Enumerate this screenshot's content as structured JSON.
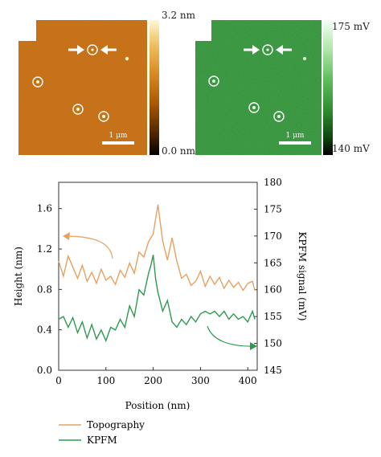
{
  "images": {
    "topography": {
      "colorbar_max": "3.2 nm",
      "colorbar_min": "0.0 nm",
      "scalebar_label": "1 μm",
      "colors": {
        "background": "#c66b12",
        "mask": "#ffffff"
      },
      "features": [
        {
          "kind": "circle-marker"
        },
        {
          "kind": "circle-marker"
        },
        {
          "kind": "circle-marker"
        },
        {
          "kind": "circle-marker"
        }
      ]
    },
    "kpfm": {
      "colorbar_max": "175 mV",
      "colorbar_min": "140 mV",
      "scalebar_label": "1 μm",
      "colors": {
        "background": "#2f8f37",
        "mask": "#ffffff"
      },
      "features": [
        {
          "kind": "circle-marker"
        },
        {
          "kind": "circle-marker"
        },
        {
          "kind": "circle-marker"
        },
        {
          "kind": "circle-marker"
        }
      ]
    }
  },
  "chart_data": {
    "type": "line",
    "xlabel": "Position (nm)",
    "ylabel_left": "Height (nm)",
    "ylabel_right": "KPFM signal (mV)",
    "xlim": [
      0,
      420
    ],
    "ylim_left": [
      0,
      1.86
    ],
    "ylim_right": [
      145,
      180
    ],
    "x_ticks": [
      0,
      100,
      200,
      300,
      400
    ],
    "y_ticks_left": [
      0.0,
      0.4,
      0.8,
      1.2,
      1.6
    ],
    "y_ticks_left_labels": [
      "0.0",
      "0.4",
      "0.8",
      "1.2",
      "1.6"
    ],
    "y_ticks_right": [
      145,
      150,
      155,
      160,
      165,
      170,
      175,
      180
    ],
    "legend_position": "bottom-left",
    "series": [
      {
        "name": "Topography",
        "axis": "left",
        "color": "#e8a060",
        "x": [
          0,
          10,
          20,
          30,
          40,
          50,
          60,
          70,
          80,
          90,
          100,
          110,
          120,
          130,
          140,
          150,
          160,
          170,
          180,
          190,
          200,
          205,
          210,
          215,
          220,
          230,
          240,
          250,
          260,
          270,
          280,
          290,
          300,
          310,
          320,
          330,
          340,
          350,
          360,
          370,
          380,
          390,
          400,
          410,
          415
        ],
        "y": [
          1.08,
          0.93,
          1.13,
          1.02,
          0.91,
          1.04,
          0.88,
          0.97,
          0.86,
          1.0,
          0.89,
          0.93,
          0.85,
          0.99,
          0.92,
          1.06,
          0.96,
          1.17,
          1.12,
          1.27,
          1.35,
          1.5,
          1.64,
          1.46,
          1.28,
          1.09,
          1.31,
          1.08,
          0.91,
          0.95,
          0.84,
          0.88,
          0.98,
          0.83,
          0.93,
          0.85,
          0.92,
          0.81,
          0.89,
          0.82,
          0.87,
          0.79,
          0.86,
          0.88,
          0.79
        ]
      },
      {
        "name": "KPFM",
        "axis": "right",
        "color": "#2e9a50",
        "x": [
          0,
          10,
          20,
          30,
          40,
          50,
          60,
          70,
          80,
          90,
          100,
          110,
          120,
          130,
          140,
          150,
          160,
          170,
          180,
          190,
          195,
          200,
          205,
          210,
          220,
          230,
          240,
          250,
          260,
          270,
          280,
          290,
          300,
          310,
          320,
          330,
          340,
          350,
          360,
          370,
          380,
          390,
          400,
          410,
          415
        ],
        "y": [
          154.5,
          155.0,
          153.0,
          154.8,
          152.0,
          154.0,
          151.0,
          153.5,
          150.8,
          152.5,
          150.5,
          153.0,
          152.5,
          154.5,
          153.0,
          157.0,
          155.0,
          160.0,
          159.0,
          163.0,
          164.5,
          166.5,
          162.0,
          159.5,
          156.0,
          158.0,
          154.0,
          153.0,
          154.5,
          153.5,
          155.0,
          154.0,
          155.5,
          156.0,
          155.5,
          156.0,
          155.0,
          156.0,
          154.5,
          155.5,
          154.5,
          155.0,
          154.0,
          156.0,
          154.5
        ]
      }
    ]
  }
}
